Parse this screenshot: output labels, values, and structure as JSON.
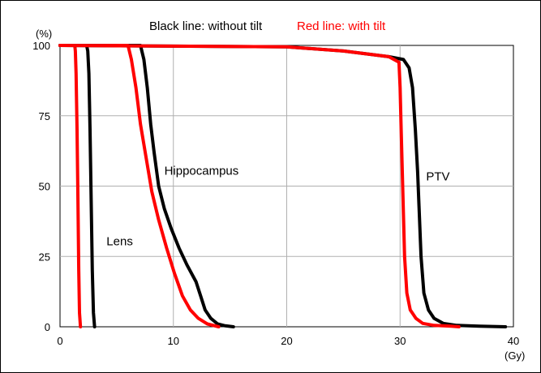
{
  "chart_data": {
    "type": "line",
    "title_parts": [
      {
        "text": "Black line: without tilt",
        "color": "#000000"
      },
      {
        "text": "Red line: with tilt",
        "color": "#ff0000"
      }
    ],
    "ylabel": "(%)",
    "xlabel": "(Gy)",
    "xlim": [
      0,
      40
    ],
    "ylim": [
      0,
      100
    ],
    "x_ticks": [
      0,
      10,
      20,
      30,
      40
    ],
    "y_ticks": [
      0,
      25,
      50,
      75,
      100
    ],
    "grid": true,
    "annotations": [
      {
        "text": "Hippocampus",
        "x": 9.2,
        "y": 54
      },
      {
        "text": "PTV",
        "x": 32.3,
        "y": 52
      },
      {
        "text": "Lens",
        "x": 4.1,
        "y": 29
      }
    ],
    "series": [
      {
        "color": "#000000",
        "x": [
          0,
          2.35,
          2.45,
          2.55,
          2.65,
          2.75,
          2.85,
          2.95,
          3.05
        ],
        "y": [
          100,
          100,
          98,
          90,
          70,
          45,
          20,
          5,
          0
        ]
      },
      {
        "color": "#ff0000",
        "x": [
          0,
          1.3,
          1.35,
          1.42,
          1.5,
          1.58,
          1.65,
          1.72,
          1.8
        ],
        "y": [
          100,
          100,
          98,
          90,
          70,
          45,
          20,
          5,
          0
        ]
      },
      {
        "color": "#000000",
        "x": [
          0,
          7.1,
          7.4,
          7.7,
          8.0,
          8.3,
          8.7,
          9.2,
          9.8,
          10.5,
          11.2,
          12.0,
          12.4,
          12.8,
          13.3,
          13.9,
          14.5,
          15.3
        ],
        "y": [
          100,
          100,
          95,
          85,
          72,
          62,
          50,
          42,
          35,
          28,
          22,
          16,
          11,
          6,
          3,
          1,
          0.4,
          0
        ]
      },
      {
        "color": "#ff0000",
        "x": [
          0,
          6.0,
          6.3,
          6.7,
          7.1,
          7.6,
          8.1,
          8.7,
          9.4,
          10.1,
          10.8,
          11.5,
          12.2,
          13.0,
          14.0
        ],
        "y": [
          100,
          100,
          95,
          85,
          72,
          60,
          48,
          38,
          28,
          19,
          11,
          6,
          3,
          1,
          0
        ]
      },
      {
        "color": "#000000",
        "x": [
          0,
          20,
          25,
          29,
          30.3,
          30.8,
          31.1,
          31.35,
          31.55,
          31.7,
          31.85,
          32.1,
          32.5,
          33.0,
          33.8,
          35.0,
          37.0,
          39.3
        ],
        "y": [
          100,
          99.5,
          98,
          96,
          95,
          92,
          85,
          70,
          55,
          40,
          25,
          12,
          6,
          3,
          1.2,
          0.5,
          0.2,
          0
        ]
      },
      {
        "color": "#ff0000",
        "x": [
          0,
          20,
          25,
          29,
          29.9,
          30.0,
          30.1,
          30.2,
          30.3,
          30.4,
          30.6,
          30.9,
          31.4,
          32.0,
          33.0,
          34.5,
          35.2
        ],
        "y": [
          100,
          99.5,
          98,
          96,
          94,
          85,
          70,
          55,
          40,
          25,
          12,
          6,
          3,
          1.2,
          0.5,
          0.2,
          0
        ]
      }
    ]
  }
}
